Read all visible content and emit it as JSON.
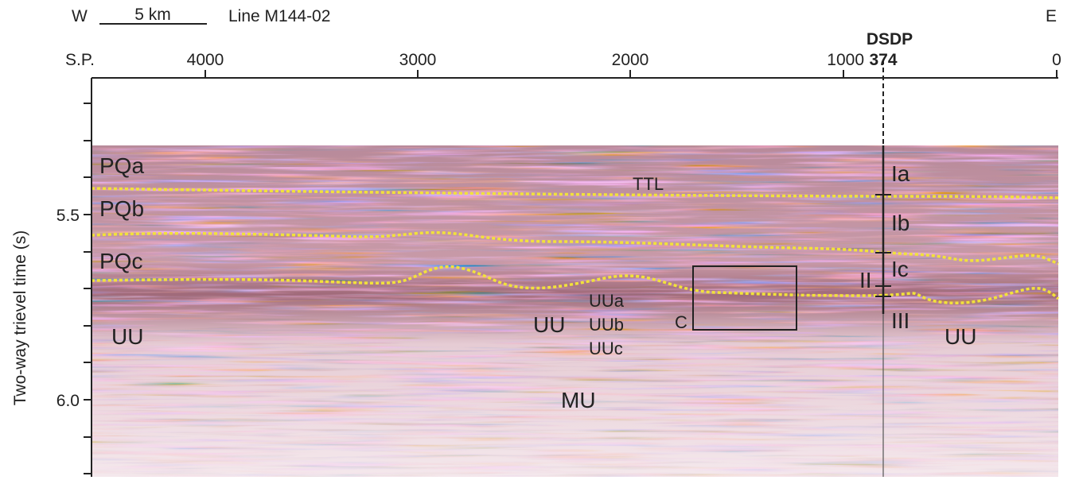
{
  "header": {
    "west": "W",
    "scale": "5 km",
    "line": "Line M144-02",
    "east": "E"
  },
  "x_axis": {
    "label": "S.P.",
    "ticks": [
      "4000",
      "3000",
      "2000",
      "1000",
      "0"
    ]
  },
  "y_axis": {
    "title": "Two-way  trievel time (s)",
    "ticks": [
      "5.5",
      "6.0"
    ]
  },
  "site": {
    "name": "DSDP",
    "number": "374",
    "units": [
      "Ia",
      "Ib",
      "Ic",
      "II",
      "III"
    ]
  },
  "units": {
    "seismic": [
      "PQa",
      "PQb",
      "PQc",
      "UU",
      "UU",
      "UU",
      "MU"
    ],
    "sub_units": [
      "UUa",
      "UUb",
      "UUc"
    ],
    "horizon": "TTL",
    "box": "C"
  }
}
